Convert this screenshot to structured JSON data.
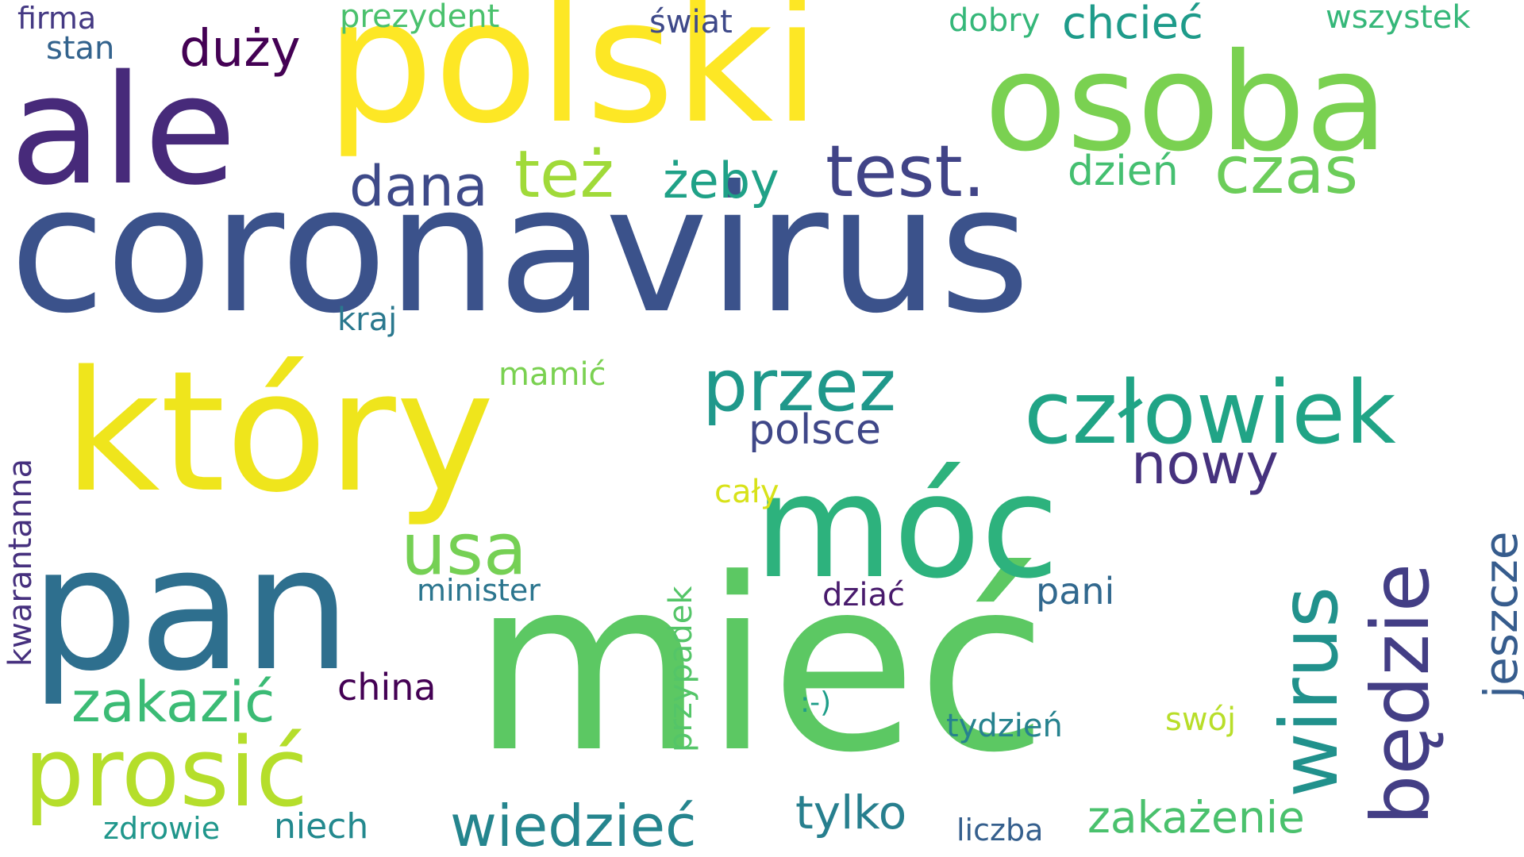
{
  "colors": {
    "background": "#ffffff",
    "dark_purple": "#482576",
    "indigo": "#3b518b",
    "blue": "#2c728e",
    "teal": "#21918c",
    "green_teal": "#27ad81",
    "green": "#5cc863",
    "lime": "#9dd93b",
    "yellow": "#f1e51d"
  },
  "words": [
    {
      "key": "coronavirus",
      "text": "coronavirus",
      "color": "#3b528b"
    },
    {
      "key": "miec",
      "text": "mieć",
      "color": "#5cc863"
    },
    {
      "key": "ktory",
      "text": "który",
      "color": "#efe51c"
    },
    {
      "key": "polski",
      "text": "polski",
      "color": "#fde725"
    },
    {
      "key": "osoba",
      "text": "osoba",
      "color": "#7ad151"
    },
    {
      "key": "ale",
      "text": "ale",
      "color": "#472a7a"
    },
    {
      "key": "pan",
      "text": "pan",
      "color": "#2e6f8e"
    },
    {
      "key": "moc",
      "text": "móc",
      "color": "#2db27d"
    },
    {
      "key": "prosic",
      "text": "prosić",
      "color": "#b5de2b"
    },
    {
      "key": "czlowiek",
      "text": "człowiek",
      "color": "#20a486"
    },
    {
      "key": "wirus",
      "text": "wirus",
      "color": "#21918c"
    },
    {
      "key": "bedzie",
      "text": "będzie",
      "color": "#433e85"
    },
    {
      "key": "test",
      "text": "test.",
      "color": "#414487"
    },
    {
      "key": "przez",
      "text": "przez",
      "color": "#1f988b"
    },
    {
      "key": "czas",
      "text": "czas",
      "color": "#6ccd5a"
    },
    {
      "key": "takze",
      "text": "też",
      "color": "#a0da39"
    },
    {
      "key": "usa",
      "text": "usa",
      "color": "#75d054"
    },
    {
      "key": "dana",
      "text": "dana",
      "color": "#3e4a89"
    },
    {
      "key": "nowy",
      "text": "nowy",
      "color": "#46327e"
    },
    {
      "key": "wiedziec",
      "text": "wiedzieć",
      "color": "#25858e"
    },
    {
      "key": "zakazic",
      "text": "zakazić",
      "color": "#3bbb75"
    },
    {
      "key": "duzy",
      "text": "duży",
      "color": "#440154"
    },
    {
      "key": "zeby",
      "text": "żeby",
      "color": "#1fa187"
    },
    {
      "key": "jeszcze",
      "text": "jeszcze",
      "color": "#365c8d"
    },
    {
      "key": "tylko",
      "text": "tylko",
      "color": "#277f8e"
    },
    {
      "key": "zakazenie",
      "text": "zakażenie",
      "color": "#4ac16d"
    },
    {
      "key": "chciec",
      "text": "chcieć",
      "color": "#1e9b8a"
    },
    {
      "key": "dzien",
      "text": "dzień",
      "color": "#44bf70"
    },
    {
      "key": "polsce",
      "text": "polsce",
      "color": "#3f4788"
    },
    {
      "key": "kwarantanna",
      "text": "kwarantanna",
      "color": "#46307e"
    },
    {
      "key": "przypadek",
      "text": "przypadek",
      "color": "#54c568"
    },
    {
      "key": "pani",
      "text": "pani",
      "color": "#31688e"
    },
    {
      "key": "niech",
      "text": "niech",
      "color": "#23898e"
    },
    {
      "key": "china",
      "text": "china",
      "color": "#440154"
    },
    {
      "key": "swiat",
      "text": "świat",
      "color": "#3e4989"
    },
    {
      "key": "wszystek",
      "text": "wszystek",
      "color": "#35b779"
    },
    {
      "key": "prezydent",
      "text": "prezydent",
      "color": "#4ac16d"
    },
    {
      "key": "firma",
      "text": "firma",
      "color": "#443983"
    },
    {
      "key": "stan",
      "text": "stan",
      "color": "#33638d"
    },
    {
      "key": "dobry",
      "text": "dobry",
      "color": "#35b779"
    },
    {
      "key": "kraj",
      "text": "kraj",
      "color": "#2a788e"
    },
    {
      "key": "mamic",
      "text": "mamić",
      "color": "#7ad151"
    },
    {
      "key": "caly",
      "text": "cały",
      "color": "#d8e219"
    },
    {
      "key": "minister",
      "text": "minister",
      "color": "#2b758e"
    },
    {
      "key": "dziac",
      "text": "dziać",
      "color": "#481a6c"
    },
    {
      "key": "tydzien",
      "text": "tydzień",
      "color": "#26828e"
    },
    {
      "key": "swoj",
      "text": "swój",
      "color": "#b8de29"
    },
    {
      "key": "smiley",
      "text": ":-)",
      "color": "#1f9e89"
    },
    {
      "key": "zdrowie",
      "text": "zdrowie",
      "color": "#1f968b"
    },
    {
      "key": "liczba",
      "text": "liczba",
      "color": "#355f8d"
    }
  ]
}
